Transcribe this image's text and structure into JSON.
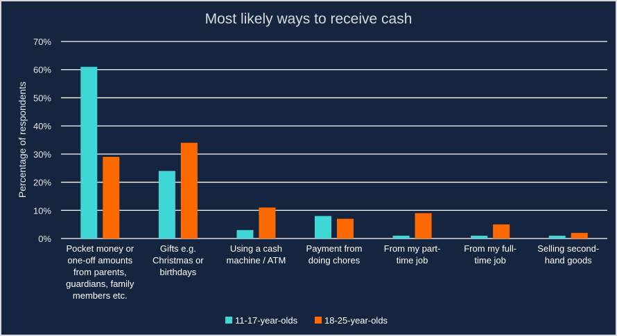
{
  "chart_data": {
    "type": "bar",
    "title": "Most likely ways to receive cash",
    "ylabel": "Percentage of respondents",
    "xlabel": "",
    "ylim": [
      0,
      70
    ],
    "ytick_labels": [
      "0%",
      "10%",
      "20%",
      "30%",
      "40%",
      "50%",
      "60%",
      "70%"
    ],
    "grid": true,
    "legend_position": "bottom",
    "categories": [
      [
        "Pocket money or",
        "one-off amounts",
        "from parents,",
        "guardians, family",
        "members etc."
      ],
      [
        "Gifts e.g.",
        "Christmas or",
        "birthdays"
      ],
      [
        "Using a cash",
        "machine / ATM"
      ],
      [
        "Payment from",
        "doing chores"
      ],
      [
        "From my part-",
        "time job"
      ],
      [
        "From my full-",
        "time job"
      ],
      [
        "Selling second-",
        "hand goods"
      ]
    ],
    "series": [
      {
        "name": "11-17-year-olds",
        "color": "#3ed6d6",
        "values": [
          61,
          24,
          3,
          8,
          1,
          1,
          1
        ]
      },
      {
        "name": "18-25-year-olds",
        "color": "#ff6a00",
        "values": [
          29,
          34,
          11,
          7,
          9,
          5,
          2
        ]
      }
    ]
  }
}
